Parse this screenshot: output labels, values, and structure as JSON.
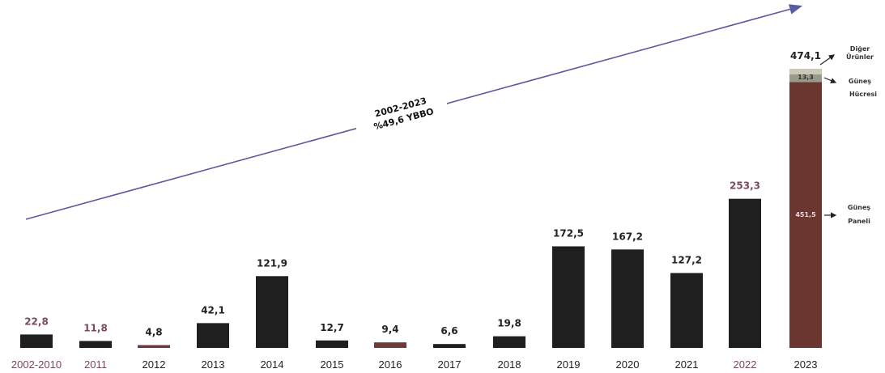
{
  "chart_data": {
    "type": "bar",
    "title": "",
    "xlabel": "",
    "ylabel": "",
    "categories": [
      "2002-2010",
      "2011",
      "2012",
      "2013",
      "2014",
      "2015",
      "2016",
      "2017",
      "2018",
      "2019",
      "2020",
      "2021",
      "2022",
      "2023"
    ],
    "values": [
      22.8,
      11.8,
      4.8,
      42.1,
      121.9,
      12.7,
      9.4,
      6.6,
      19.8,
      172.5,
      167.2,
      127.2,
      253.3,
      474.1
    ],
    "value_labels": [
      "22,8",
      "11,8",
      "4,8",
      "42,1",
      "121,9",
      "12,7",
      "9,4",
      "6,6",
      "19,8",
      "172,5",
      "167,2",
      "127,2",
      "253,3",
      "474,1"
    ],
    "ylim": [
      0,
      500
    ],
    "grid": false,
    "stacked_last_bar": {
      "category": "2023",
      "segments": [
        {
          "name": "Güneş Paneli",
          "value": 451.5,
          "label": "451,5"
        },
        {
          "name": "Güneş Hücresi",
          "value": 13.3,
          "label": "13,3"
        },
        {
          "name": "Diğer Ürünler",
          "value": 9.3,
          "label": ""
        }
      ]
    },
    "trend_annotation": {
      "line1": "2002-2023",
      "line2": "%49,6 YBBO"
    },
    "segment_annotations": {
      "other_line1": "Diğer",
      "other_line2": "Ürünler",
      "cell_line1": "Güneş",
      "cell_line2": "Hücresi",
      "panel_line1": "Güneş",
      "panel_line2": "Paneli"
    }
  },
  "colors": {
    "bar": "#1f1f1f",
    "bar_light": "#6e3b3b",
    "panel": "#6b3530",
    "cell": "#9a9a8c",
    "other": "#c9c9b6",
    "label_dark": "#222222",
    "label_muted": "#7a4a55",
    "trend": "#5a5aa0"
  }
}
